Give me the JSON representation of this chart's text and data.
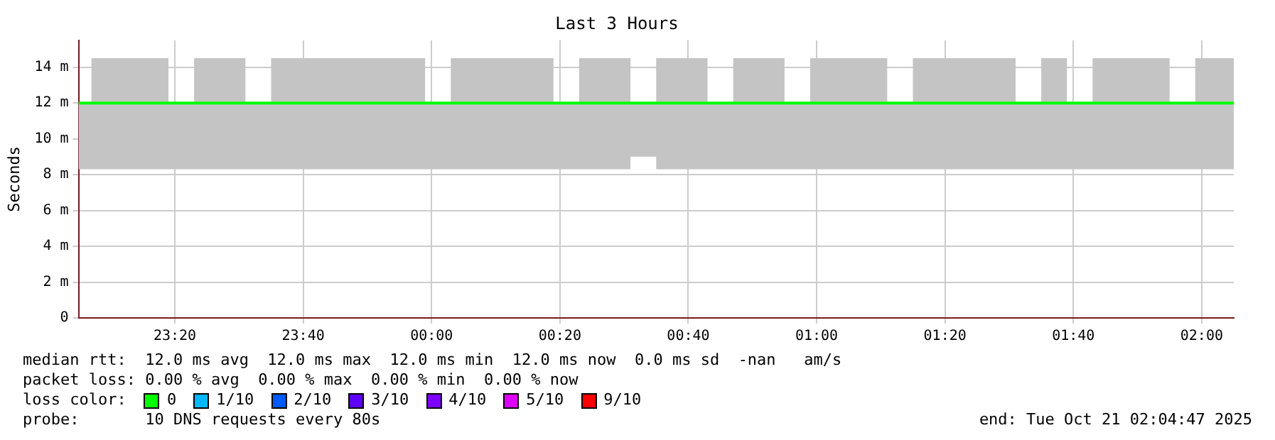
{
  "chart_data": {
    "type": "line",
    "title": "Last 3 Hours",
    "ylabel": "Seconds",
    "legend_title": "loss color:",
    "legend": "bottom",
    "grid": true,
    "marker": "none",
    "line_style": "solid",
    "x": [
      "2025-10-20T23:05",
      "2025-10-20T23:09",
      "2025-10-20T23:13",
      "2025-10-20T23:17",
      "2025-10-20T23:21",
      "2025-10-20T23:25",
      "2025-10-20T23:29",
      "2025-10-20T23:33",
      "2025-10-20T23:37",
      "2025-10-20T23:41",
      "2025-10-20T23:45",
      "2025-10-20T23:49",
      "2025-10-20T23:53",
      "2025-10-20T23:57",
      "2025-10-21T00:01",
      "2025-10-21T00:05",
      "2025-10-21T00:09",
      "2025-10-21T00:13",
      "2025-10-21T00:17",
      "2025-10-21T00:21",
      "2025-10-21T00:25",
      "2025-10-21T00:29",
      "2025-10-21T00:33",
      "2025-10-21T00:37",
      "2025-10-21T00:41",
      "2025-10-21T00:45",
      "2025-10-21T00:49",
      "2025-10-21T00:53",
      "2025-10-21T00:57",
      "2025-10-21T01:01",
      "2025-10-21T01:05",
      "2025-10-21T01:09",
      "2025-10-21T01:13",
      "2025-10-21T01:17",
      "2025-10-21T01:21",
      "2025-10-21T01:25",
      "2025-10-21T01:29",
      "2025-10-21T01:33",
      "2025-10-21T01:37",
      "2025-10-21T01:41",
      "2025-10-21T01:45",
      "2025-10-21T01:49",
      "2025-10-21T01:53",
      "2025-10-21T01:57",
      "2025-10-21T02:01",
      "2025-10-21T02:05"
    ],
    "xlim": [
      "2025-10-20T23:05",
      "2025-10-21T02:05"
    ],
    "xticks": [
      {
        "value": "2025-10-20T23:20",
        "label": "23:20"
      },
      {
        "value": "2025-10-20T23:40",
        "label": "23:40"
      },
      {
        "value": "2025-10-21T00:00",
        "label": "00:00"
      },
      {
        "value": "2025-10-21T00:20",
        "label": "00:20"
      },
      {
        "value": "2025-10-21T00:40",
        "label": "00:40"
      },
      {
        "value": "2025-10-21T01:00",
        "label": "01:00"
      },
      {
        "value": "2025-10-21T01:20",
        "label": "01:20"
      },
      {
        "value": "2025-10-21T01:40",
        "label": "01:40"
      },
      {
        "value": "2025-10-21T02:00",
        "label": "02:00"
      }
    ],
    "ylim": [
      0,
      15.5
    ],
    "yticks": [
      0,
      {
        "value": 2,
        "label": "2 m"
      },
      {
        "value": 4,
        "label": "4 m"
      },
      {
        "value": 6,
        "label": "6 m"
      },
      {
        "value": 8,
        "label": "8 m"
      },
      {
        "value": 10,
        "label": "10 m"
      },
      {
        "value": 12,
        "label": "12 m"
      },
      {
        "value": 14,
        "label": "14 m"
      }
    ],
    "series": [
      {
        "name": "0",
        "color": "#00ff00",
        "values": [
          12,
          12,
          12,
          12,
          12,
          12,
          12,
          12,
          12,
          12,
          12,
          12,
          12,
          12,
          12,
          12,
          12,
          12,
          12,
          12,
          12,
          12,
          12,
          12,
          12,
          12,
          12,
          12,
          12,
          12,
          12,
          12,
          12,
          12,
          12,
          12,
          12,
          12,
          12,
          12,
          12,
          12,
          12,
          12,
          12,
          12
        ],
        "lower": [
          8.3,
          8.3,
          8.3,
          8.3,
          8.3,
          8.3,
          8.3,
          8.3,
          8.3,
          8.3,
          8.3,
          8.3,
          8.3,
          8.3,
          8.3,
          8.3,
          8.3,
          8.3,
          8.3,
          8.3,
          8.3,
          8.3,
          9,
          8.3,
          8.3,
          8.3,
          8.3,
          8.3,
          8.3,
          8.3,
          8.3,
          8.3,
          8.3,
          8.3,
          8.3,
          8.3,
          8.3,
          8.3,
          8.3,
          8.3,
          8.3,
          8.3,
          8.3,
          8.3,
          8.3,
          8.3
        ],
        "upper": [
          12,
          14.5,
          14.5,
          14.5,
          12,
          14.5,
          14.5,
          12,
          14.5,
          14.5,
          14.5,
          14.5,
          14.5,
          14.5,
          12,
          14.5,
          14.5,
          14.5,
          14.5,
          12,
          14.5,
          14.5,
          12,
          14.5,
          14.5,
          12,
          14.5,
          14.5,
          12,
          14.5,
          14.5,
          14.5,
          12,
          14.5,
          14.5,
          14.5,
          14.5,
          12,
          14.5,
          12,
          14.5,
          14.5,
          14.5,
          12,
          14.5,
          14.5
        ]
      },
      {
        "name": "1/10",
        "color": "#00b8ff",
        "values": [
          null,
          null,
          null,
          null,
          null,
          null,
          null,
          null,
          null,
          null,
          null,
          null,
          null,
          null,
          null,
          null,
          null,
          null,
          null,
          null,
          null,
          null,
          null,
          null,
          null,
          null,
          null,
          null,
          null,
          null,
          null,
          null,
          null,
          null,
          null,
          null,
          null,
          null,
          null,
          null,
          null,
          null,
          null,
          null,
          null,
          null
        ]
      },
      {
        "name": "2/10",
        "color": "#0059ff",
        "values": [
          null,
          null,
          null,
          null,
          null,
          null,
          null,
          null,
          null,
          null,
          null,
          null,
          null,
          null,
          null,
          null,
          null,
          null,
          null,
          null,
          null,
          null,
          null,
          null,
          null,
          null,
          null,
          null,
          null,
          null,
          null,
          null,
          null,
          null,
          null,
          null,
          null,
          null,
          null,
          null,
          null,
          null,
          null,
          null,
          null,
          null
        ]
      },
      {
        "name": "3/10",
        "color": "#5e00ff",
        "values": [
          null,
          null,
          null,
          null,
          null,
          null,
          null,
          null,
          null,
          null,
          null,
          null,
          null,
          null,
          null,
          null,
          null,
          null,
          null,
          null,
          null,
          null,
          null,
          null,
          null,
          null,
          null,
          null,
          null,
          null,
          null,
          null,
          null,
          null,
          null,
          null,
          null,
          null,
          null,
          null,
          null,
          null,
          null,
          null,
          null,
          null
        ]
      },
      {
        "name": "4/10",
        "color": "#7e00ff",
        "values": [
          null,
          null,
          null,
          null,
          null,
          null,
          null,
          null,
          null,
          null,
          null,
          null,
          null,
          null,
          null,
          null,
          null,
          null,
          null,
          null,
          null,
          null,
          null,
          null,
          null,
          null,
          null,
          null,
          null,
          null,
          null,
          null,
          null,
          null,
          null,
          null,
          null,
          null,
          null,
          null,
          null,
          null,
          null,
          null,
          null,
          null
        ]
      },
      {
        "name": "5/10",
        "color": "#dd00ff",
        "values": [
          null,
          null,
          null,
          null,
          null,
          null,
          null,
          null,
          null,
          null,
          null,
          null,
          null,
          null,
          null,
          null,
          null,
          null,
          null,
          null,
          null,
          null,
          null,
          null,
          null,
          null,
          null,
          null,
          null,
          null,
          null,
          null,
          null,
          null,
          null,
          null,
          null,
          null,
          null,
          null,
          null,
          null,
          null,
          null,
          null,
          null
        ]
      },
      {
        "name": "9/10",
        "color": "#ff0000",
        "values": [
          null,
          null,
          null,
          null,
          null,
          null,
          null,
          null,
          null,
          null,
          null,
          null,
          null,
          null,
          null,
          null,
          null,
          null,
          null,
          null,
          null,
          null,
          null,
          null,
          null,
          null,
          null,
          null,
          null,
          null,
          null,
          null,
          null,
          null,
          null,
          null,
          null,
          null,
          null,
          null,
          null,
          null,
          null,
          null,
          null,
          null
        ]
      }
    ],
    "annotations": [
      "median rtt:  12.0 ms avg  12.0 ms max  12.0 ms min  12.0 ms now  0.0 ms sd  -nan   am/s",
      "packet loss: 0.00 % avg  0.00 % max  0.00 % min  0.00 % now",
      "probe:       10 DNS requests every 80s",
      "end: Tue Oct 21 02:04:47 2025"
    ]
  }
}
